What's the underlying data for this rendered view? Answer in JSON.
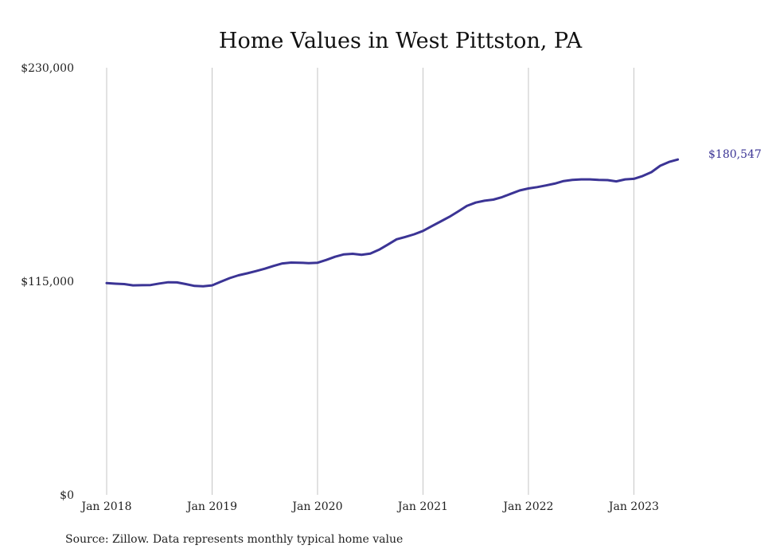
{
  "chart_data": {
    "type": "line",
    "title": "Home Values in West Pittston, PA",
    "xlabel": "",
    "ylabel": "",
    "x_start": "2018-01",
    "x_tick_labels": [
      "Jan 2018",
      "Jan 2019",
      "Jan 2020",
      "Jan 2021",
      "Jan 2022",
      "Jan 2023"
    ],
    "y_tick_labels": [
      "$0",
      "$115,000",
      "$230,000"
    ],
    "y_ticks": [
      0,
      115000,
      230000
    ],
    "ylim": [
      0,
      230000
    ],
    "grid": "vertical",
    "line_color": "#3b3495",
    "grid_color": "#c4c4c4",
    "end_label": "$180,547",
    "series": [
      {
        "values": [
          114000,
          113700,
          113500,
          112800,
          112900,
          113000,
          113800,
          114500,
          114400,
          113500,
          112500,
          112300,
          112800,
          114800,
          116700,
          118200,
          119300,
          120500,
          121800,
          123300,
          124600,
          125100,
          125000,
          124800,
          125000,
          126500,
          128200,
          129500,
          129800,
          129300,
          129900,
          132000,
          134800,
          137600,
          138900,
          140300,
          142100,
          144700,
          147200,
          149700,
          152600,
          155600,
          157400,
          158400,
          159000,
          160300,
          162100,
          163900,
          165000,
          165700,
          166600,
          167600,
          169000,
          169600,
          169900,
          169900,
          169600,
          169500,
          168800,
          169900,
          170200,
          171700,
          173800,
          177200,
          179300,
          180547
        ]
      }
    ]
  },
  "footer": {
    "source": "Source: Zillow. Data represents monthly typical home value"
  }
}
